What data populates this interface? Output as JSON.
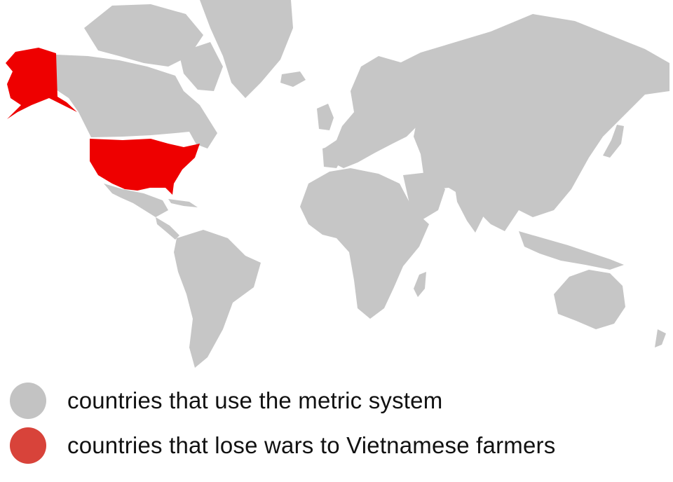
{
  "colors": {
    "metric": "#c6c6c6",
    "lose_wars": "#ee0000",
    "swatch_metric": "#c3c3c3",
    "swatch_lose_wars": "#d8433a",
    "background": "#ffffff"
  },
  "legend": {
    "items": [
      {
        "label": "countries that use the metric system",
        "color_key": "swatch_metric"
      },
      {
        "label": "countries that lose wars to Vietnamese farmers",
        "color_key": "swatch_lose_wars"
      }
    ]
  },
  "highlighted_regions": [
    "United States (contiguous)",
    "Alaska"
  ]
}
